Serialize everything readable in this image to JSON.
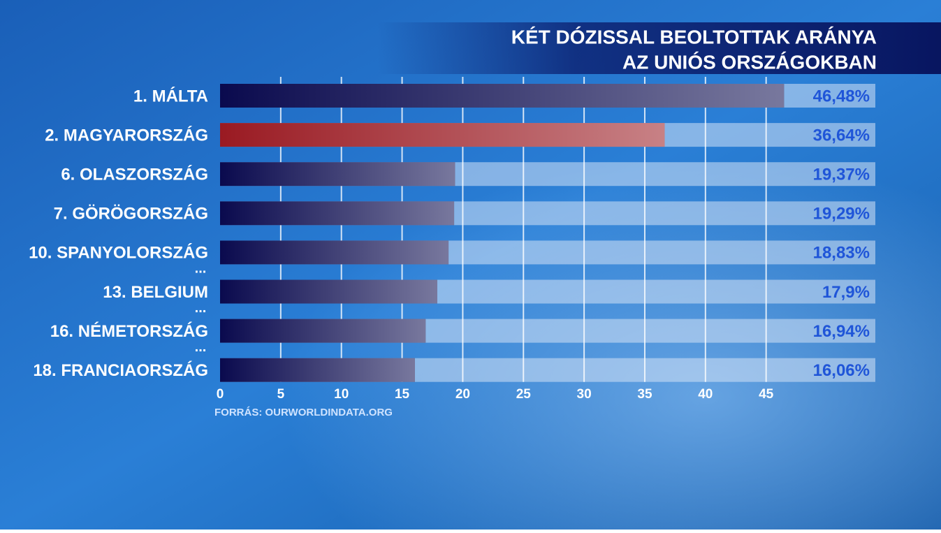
{
  "chart_data": {
    "type": "bar",
    "orientation": "horizontal",
    "title": [
      "KÉT DÓZISSAL BEOLTOTTAK ARÁNYA",
      "AZ UNIÓS ORSZÁGOKBAN"
    ],
    "categories": [
      "1. MÁLTA",
      "2. MAGYARORSZÁG",
      "6. OLASZORSZÁG",
      "7. GÖRÖGORSZÁG",
      "10. SPANYOLORSZÁG",
      "13. BELGIUM",
      "16. NÉMETORSZÁG",
      "18. FRANCIAORSZÁG"
    ],
    "values": [
      46.48,
      36.64,
      19.37,
      19.29,
      18.83,
      17.9,
      16.94,
      16.06
    ],
    "value_labels": [
      "46,48%",
      "36,64%",
      "19,37%",
      "19,29%",
      "18,83%",
      "17,9%",
      "16,94%",
      "16,06%"
    ],
    "colors": [
      "#0a0a4e",
      "#9a1a22",
      "#0a0a4e",
      "#0a0a4e",
      "#0a0a4e",
      "#0a0a4e",
      "#0a0a4e",
      "#0a0a4e"
    ],
    "ellipsis_marks": [
      "...",
      "...",
      "..."
    ],
    "xlim": [
      0,
      54
    ],
    "xticks": [
      0,
      5,
      10,
      15,
      20,
      25,
      30,
      35,
      40,
      45
    ],
    "grid": true,
    "source": "FORRÁS: OURWORLDINDATA.ORG"
  }
}
